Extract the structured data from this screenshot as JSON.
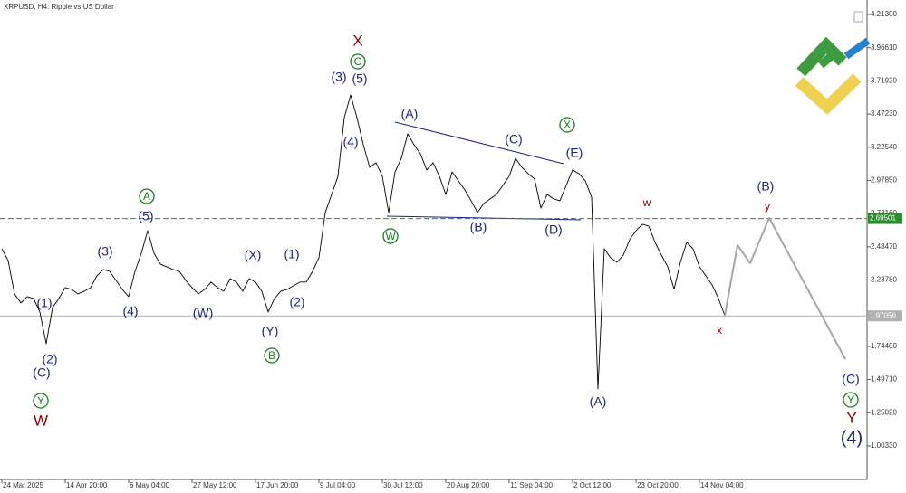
{
  "chart_data": {
    "type": "line",
    "title": "XRPUSD, H4:  Ripple vs US Dollar",
    "x": [
      "24 Mar 2025",
      null,
      null,
      null,
      null,
      null,
      null,
      null,
      null,
      null,
      "14 Apr 20:00",
      null,
      null,
      null,
      null,
      null,
      null,
      null,
      null,
      null,
      "6 May 04:00",
      null,
      null,
      null,
      null,
      null,
      null,
      null,
      null,
      null,
      "27 May 12:00",
      null,
      null,
      null,
      null,
      null,
      null,
      null,
      null,
      null,
      "17 Jun 20:00",
      null,
      null,
      null,
      null,
      null,
      null,
      null,
      null,
      null,
      "9 Jul 04:00",
      null,
      null,
      null,
      null,
      null,
      null,
      null,
      null,
      null,
      "30 Jul 12:00",
      null,
      null,
      null,
      null,
      null,
      null,
      null,
      null,
      null,
      "20 Aug 20:00",
      null,
      null,
      null,
      null,
      null,
      null,
      null,
      null,
      null,
      "11 Sep 04:00",
      null,
      null,
      null,
      null,
      null,
      null,
      null,
      null,
      null,
      "2 Oct 12:00",
      null,
      null,
      null,
      null,
      null,
      null,
      null,
      null,
      null,
      "23 Oct 20:00",
      null,
      null,
      null,
      null,
      null,
      null,
      null,
      null,
      null,
      "14 Nov 04:00",
      null,
      null,
      null,
      null,
      null,
      null,
      null,
      null,
      null,
      null,
      null,
      null,
      null,
      null,
      null,
      null,
      null,
      null,
      null,
      null,
      null,
      null,
      null
    ],
    "price": {
      "color": "#000000",
      "values": [
        2.47,
        2.383,
        2.134,
        2.067,
        2.114,
        2.1,
        1.999,
        1.764,
        2.033,
        2.1,
        2.181,
        2.168,
        2.134,
        2.154,
        2.181,
        2.269,
        2.316,
        2.302,
        2.235,
        2.168,
        2.114,
        2.302,
        2.437,
        2.605,
        2.437,
        2.356,
        2.336,
        2.316,
        2.302,
        2.235,
        2.181,
        2.134,
        2.168,
        2.222,
        2.181,
        2.154,
        2.248,
        2.222,
        2.154,
        2.248,
        2.222,
        2.154,
        1.999,
        2.1,
        2.154,
        2.168,
        2.195,
        2.222,
        2.222,
        2.302,
        2.403,
        2.74,
        2.874,
        3.009,
        3.446,
        3.614,
        3.446,
        3.244,
        3.076,
        3.11,
        3.009,
        2.74,
        3.042,
        3.143,
        3.325,
        3.244,
        3.177,
        3.056,
        3.11,
        3.009,
        2.874,
        3.042,
        2.975,
        2.908,
        2.827,
        2.74,
        2.807,
        2.841,
        2.874,
        2.942,
        3.009,
        3.143,
        3.076,
        3.029,
        2.989,
        2.773,
        2.874,
        2.841,
        2.827,
        2.942,
        3.056,
        3.029,
        2.975,
        2.854,
        1.427,
        2.47,
        2.403,
        2.37,
        2.423,
        2.538,
        2.605,
        2.652,
        2.639,
        2.518,
        2.423,
        2.336,
        2.168,
        2.37,
        2.518,
        2.47,
        2.336,
        2.269,
        2.201,
        2.1,
        1.973,
        null,
        null,
        null,
        null,
        null,
        null,
        null,
        null,
        null,
        null,
        null,
        null,
        null,
        null,
        null,
        null,
        null,
        null,
        null
      ]
    },
    "projection": {
      "color": "#a6a6a6",
      "values": [
        null,
        null,
        null,
        null,
        null,
        null,
        null,
        null,
        null,
        null,
        null,
        null,
        null,
        null,
        null,
        null,
        null,
        null,
        null,
        null,
        null,
        null,
        null,
        null,
        null,
        null,
        null,
        null,
        null,
        null,
        null,
        null,
        null,
        null,
        null,
        null,
        null,
        null,
        null,
        null,
        null,
        null,
        null,
        null,
        null,
        null,
        null,
        null,
        null,
        null,
        null,
        null,
        null,
        null,
        null,
        null,
        null,
        null,
        null,
        null,
        null,
        null,
        null,
        null,
        null,
        null,
        null,
        null,
        null,
        null,
        null,
        null,
        null,
        null,
        null,
        null,
        null,
        null,
        null,
        null,
        null,
        null,
        null,
        null,
        null,
        null,
        null,
        null,
        null,
        null,
        null,
        null,
        null,
        null,
        null,
        null,
        null,
        null,
        null,
        null,
        null,
        null,
        null,
        null,
        null,
        null,
        null,
        null,
        null,
        null,
        null,
        null,
        null,
        null,
        1.973,
        2.235,
        2.497,
        2.43,
        2.363,
        2.475,
        2.587,
        2.699,
        2.612,
        2.524,
        2.437,
        2.349,
        2.262,
        2.174,
        2.087,
        1.999,
        1.912,
        1.824,
        1.737,
        1.649
      ]
    },
    "ylim": [
      0.754,
      4.3207
    ],
    "yticks": [
      {
        "value": 4.213,
        "label": "4.21300"
      },
      {
        "value": 3.9661,
        "label": "3.96610"
      },
      {
        "value": 3.7192,
        "label": "3.71920"
      },
      {
        "value": 3.4723,
        "label": "3.47230"
      },
      {
        "value": 3.2254,
        "label": "3.22540"
      },
      {
        "value": 2.9785,
        "label": "2.97850"
      },
      {
        "value": 2.7316,
        "label": "2.73160"
      },
      {
        "value": 2.4847,
        "label": "2.48470"
      },
      {
        "value": 2.2378,
        "label": "2.23780"
      },
      {
        "value": 1.744,
        "label": "1.74400"
      },
      {
        "value": 1.4971,
        "label": "1.49710"
      },
      {
        "value": 1.2502,
        "label": "1.25020"
      },
      {
        "value": 1.0033,
        "label": "1.00330"
      }
    ],
    "hlines": [
      {
        "value": 2.69501,
        "color": "#2e8b2e",
        "dashed": true
      },
      {
        "value": 1.97056,
        "color": "#b0b0b0",
        "dashed": false
      }
    ],
    "annotations": [
      "X",
      "C",
      "(3)",
      "(5)",
      "(4)",
      "(A)",
      "(C)",
      "(E)",
      "X",
      "(B)",
      "(D)",
      "W",
      "A",
      "(5)",
      "(3)",
      "(4)",
      "(W)",
      "(X)",
      "(1)",
      "(2)",
      "(Y)",
      "B",
      "(1)",
      "(2)",
      "(C)",
      "Y",
      "W",
      "w",
      "(B)",
      "y",
      "x",
      "(A)",
      "(C)",
      "Y",
      "Y",
      "(4)"
    ]
  }
}
